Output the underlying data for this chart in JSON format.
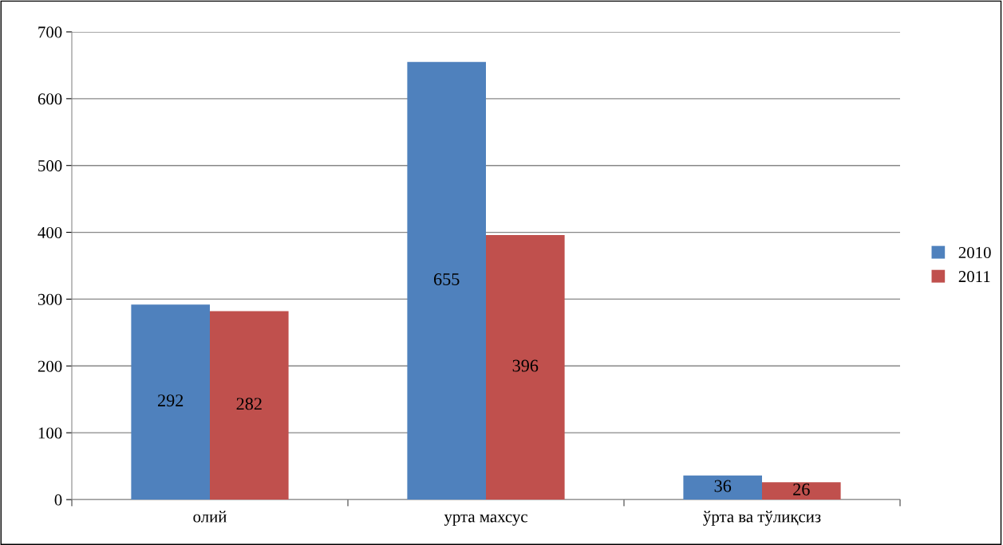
{
  "chart_data": {
    "type": "bar",
    "categories": [
      "олий",
      "урта махсус",
      "ўрта ва тўлиқсиз"
    ],
    "series": [
      {
        "name": "2010",
        "color": "#4f81bd",
        "values": [
          292,
          655,
          36
        ]
      },
      {
        "name": "2011",
        "color": "#c0504d",
        "values": [
          282,
          396,
          26
        ]
      }
    ],
    "ylim": [
      0,
      700
    ],
    "yticks": [
      0,
      100,
      200,
      300,
      400,
      500,
      600,
      700
    ],
    "grid": "y",
    "legend": "right",
    "data_labels": true
  }
}
